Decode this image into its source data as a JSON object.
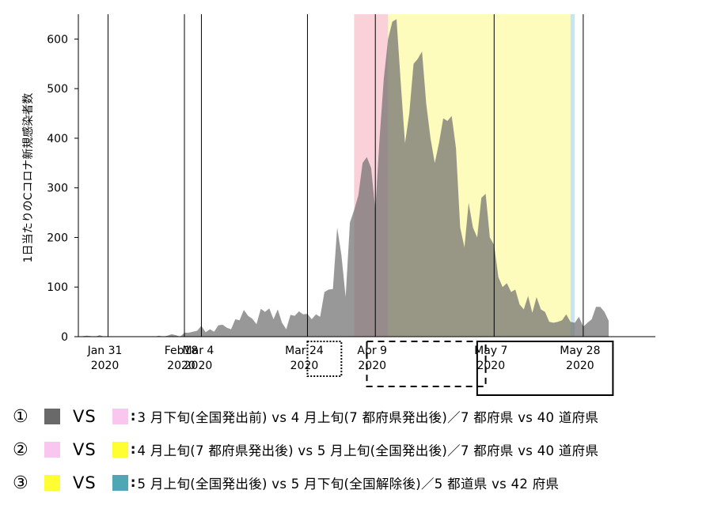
{
  "chart_data": {
    "type": "area",
    "ylabel": "1日当たりのCコロナ新規感染者数",
    "ylim": [
      0,
      650
    ],
    "yticks": [
      0,
      100,
      200,
      300,
      400,
      500,
      600
    ],
    "xlim": [
      0,
      136
    ],
    "x_ticks": [
      {
        "day": 7,
        "label": [
          "Jan 31",
          "2020"
        ]
      },
      {
        "day": 25,
        "label": [
          "Feb18",
          "2020"
        ]
      },
      {
        "day": 29,
        "label": [
          "Mar 4",
          "2020"
        ]
      },
      {
        "day": 54,
        "label": [
          "Mar 24",
          "2020"
        ]
      },
      {
        "day": 70,
        "label": [
          "Apr 9",
          "2020"
        ]
      },
      {
        "day": 98,
        "label": [
          "May 7",
          "2020"
        ]
      },
      {
        "day": 119,
        "label": [
          "May 28",
          "2020"
        ]
      }
    ],
    "vlines": [
      7,
      25,
      29,
      54,
      70,
      98,
      119
    ],
    "shaded_periods": [
      {
        "start": 65,
        "end": 73,
        "color": "#f9c9d1",
        "label": "3月下旬(全国発出前)→4月上旬"
      },
      {
        "start": 73,
        "end": 116,
        "color": "#fdfcb0",
        "label": "4月上旬→5月上旬"
      },
      {
        "start": 116,
        "end": 117,
        "color": "#bde0ee",
        "label": "5月下旬(全国解除後)"
      }
    ],
    "series": [
      {
        "values": [
          [
            0,
            0
          ],
          [
            2,
            2
          ],
          [
            4,
            0
          ],
          [
            5,
            3
          ],
          [
            6,
            0
          ],
          [
            8,
            0
          ],
          [
            10,
            0
          ],
          [
            12,
            0
          ],
          [
            14,
            0
          ],
          [
            16,
            0
          ],
          [
            18,
            0
          ],
          [
            19,
            2
          ],
          [
            20,
            0
          ],
          [
            21,
            2
          ],
          [
            22,
            5
          ],
          [
            23,
            3
          ],
          [
            24,
            0
          ],
          [
            25,
            8
          ],
          [
            26,
            8
          ],
          [
            27,
            10
          ],
          [
            28,
            12
          ],
          [
            29,
            22
          ],
          [
            30,
            9
          ],
          [
            31,
            15
          ],
          [
            32,
            10
          ],
          [
            33,
            23
          ],
          [
            34,
            24
          ],
          [
            35,
            18
          ],
          [
            36,
            15
          ],
          [
            37,
            35
          ],
          [
            38,
            33
          ],
          [
            39,
            54
          ],
          [
            40,
            42
          ],
          [
            41,
            36
          ],
          [
            42,
            25
          ],
          [
            43,
            56
          ],
          [
            44,
            50
          ],
          [
            45,
            57
          ],
          [
            46,
            35
          ],
          [
            47,
            55
          ],
          [
            48,
            28
          ],
          [
            49,
            15
          ],
          [
            50,
            44
          ],
          [
            51,
            42
          ],
          [
            52,
            51
          ],
          [
            53,
            45
          ],
          [
            54,
            46
          ],
          [
            55,
            35
          ],
          [
            56,
            45
          ],
          [
            57,
            40
          ],
          [
            58,
            90
          ],
          [
            59,
            95
          ],
          [
            60,
            96
          ],
          [
            61,
            220
          ],
          [
            62,
            165
          ],
          [
            63,
            80
          ],
          [
            64,
            230
          ],
          [
            65,
            255
          ],
          [
            66,
            285
          ],
          [
            67,
            350
          ],
          [
            68,
            362
          ],
          [
            69,
            340
          ],
          [
            70,
            255
          ],
          [
            71,
            400
          ],
          [
            72,
            520
          ],
          [
            73,
            600
          ],
          [
            74,
            635
          ],
          [
            75,
            640
          ],
          [
            76,
            510
          ],
          [
            77,
            390
          ],
          [
            78,
            450
          ],
          [
            79,
            550
          ],
          [
            80,
            560
          ],
          [
            81,
            575
          ],
          [
            82,
            470
          ],
          [
            83,
            400
          ],
          [
            84,
            350
          ],
          [
            85,
            390
          ],
          [
            86,
            440
          ],
          [
            87,
            435
          ],
          [
            88,
            445
          ],
          [
            89,
            380
          ],
          [
            90,
            220
          ],
          [
            91,
            180
          ],
          [
            92,
            270
          ],
          [
            93,
            220
          ],
          [
            94,
            200
          ],
          [
            95,
            280
          ],
          [
            96,
            288
          ],
          [
            97,
            200
          ],
          [
            98,
            185
          ],
          [
            99,
            120
          ],
          [
            100,
            100
          ],
          [
            101,
            108
          ],
          [
            102,
            90
          ],
          [
            103,
            95
          ],
          [
            104,
            65
          ],
          [
            105,
            55
          ],
          [
            106,
            82
          ],
          [
            107,
            48
          ],
          [
            108,
            80
          ],
          [
            109,
            55
          ],
          [
            110,
            50
          ],
          [
            111,
            30
          ],
          [
            112,
            28
          ],
          [
            113,
            30
          ],
          [
            114,
            33
          ],
          [
            115,
            45
          ],
          [
            116,
            30
          ],
          [
            117,
            28
          ],
          [
            118,
            40
          ],
          [
            119,
            20
          ],
          [
            120,
            28
          ],
          [
            121,
            35
          ],
          [
            122,
            60
          ],
          [
            123,
            60
          ],
          [
            124,
            50
          ],
          [
            125,
            32
          ]
        ],
        "color": "#707070"
      }
    ],
    "boxes": [
      {
        "type": "dotted",
        "x0": 54,
        "x1": 62
      },
      {
        "type": "dashed",
        "x0": 68,
        "x1": 96
      },
      {
        "type": "solid",
        "x0": 94,
        "x1": 126
      }
    ]
  },
  "legend": [
    {
      "num": "①",
      "sw1": "#696969",
      "sw2": "#f8c6ef",
      "vs": "VS",
      "desc": "3 月下旬(全国発出前) vs 4 月上旬(7 都府県発出後)／7 都府県 vs 40 道府県"
    },
    {
      "num": "②",
      "sw1": "#f8c6ef",
      "sw2": "#fefe33",
      "vs": "VS",
      "desc": "4 月上旬(7 都府県発出後) vs 5 月上旬(全国発出後)／7 都府県 vs 40 道府県"
    },
    {
      "num": "③",
      "sw1": "#fefe33",
      "sw2": "#4fa7b6",
      "vs": "VS",
      "desc": "5 月上旬(全国発出後) vs 5 月下旬(全国解除後)／5 都道県 vs 42 府県"
    }
  ]
}
